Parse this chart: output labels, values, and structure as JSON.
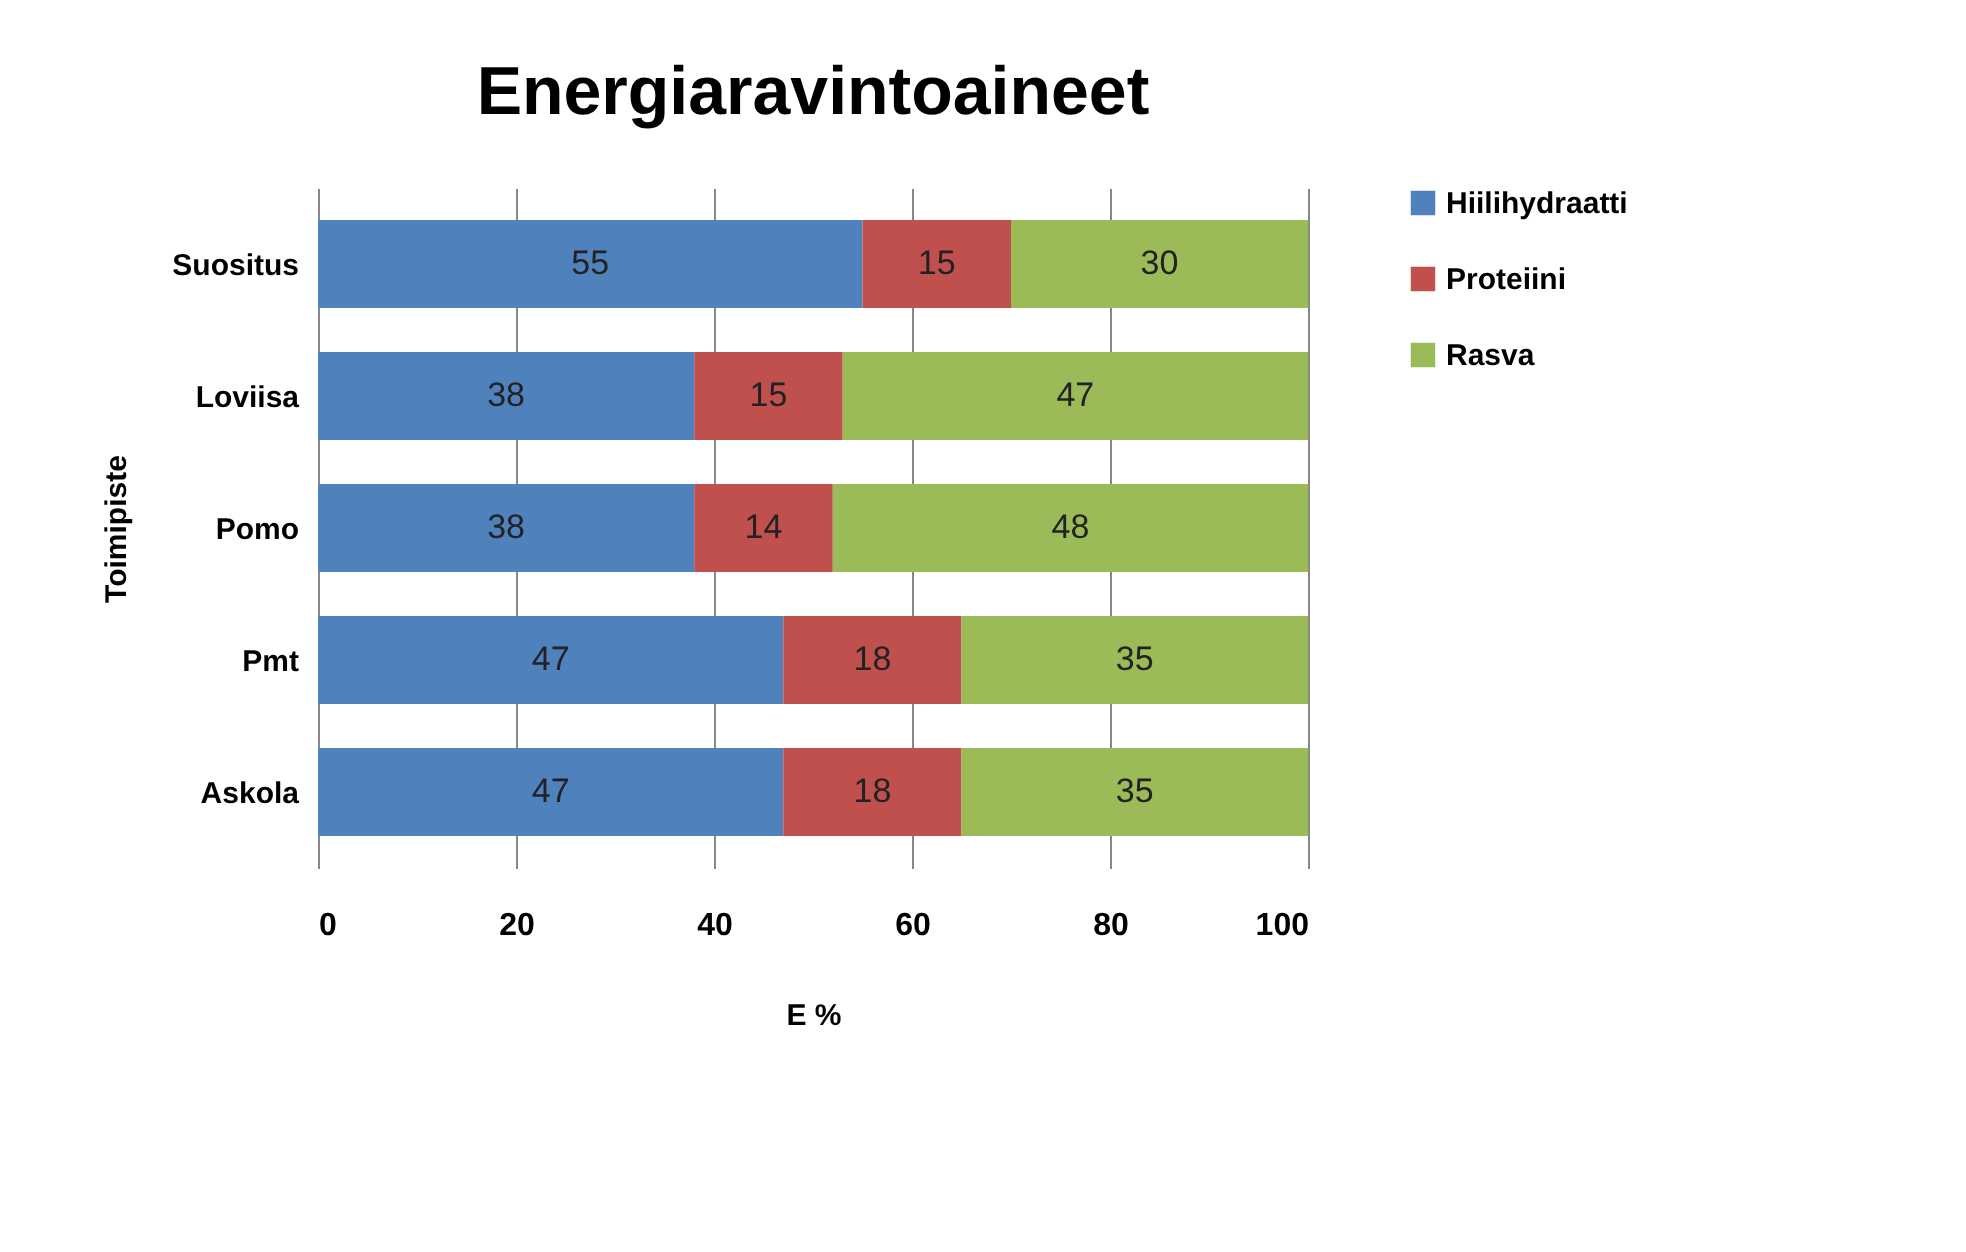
{
  "chart_data": {
    "type": "bar",
    "orientation": "horizontal",
    "stacked": true,
    "title": "Energiaravintoaineet",
    "xlabel": "E %",
    "ylabel": "Toimipiste",
    "categories": [
      "Suositus",
      "Loviisa",
      "Pomo",
      "Pmt",
      "Askola"
    ],
    "series": [
      {
        "name": "Hiilihydraatti",
        "color": "#4f81bd",
        "values": [
          55,
          38,
          38,
          47,
          47
        ]
      },
      {
        "name": "Proteiini",
        "color": "#c0504d",
        "values": [
          15,
          15,
          14,
          18,
          18
        ]
      },
      {
        "name": "Rasva",
        "color": "#9bbb59",
        "values": [
          30,
          47,
          48,
          35,
          35
        ]
      }
    ],
    "xlim": [
      0,
      100
    ],
    "xticks": [
      0,
      20,
      40,
      60,
      80,
      100
    ],
    "grid": "x",
    "legend": "right",
    "data_labels": true
  }
}
